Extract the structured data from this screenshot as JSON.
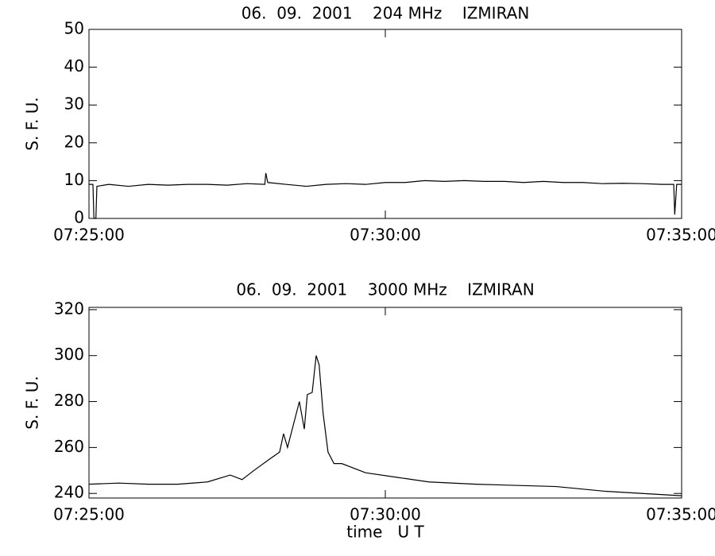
{
  "chart_data": [
    {
      "type": "line",
      "title": "06.  09.  2001    204 MHz    IZMIRAN",
      "y_label": "S. F. U.",
      "xlim": [
        "07:25:00",
        "07:35:00"
      ],
      "xticks": [
        "07:25:00",
        "07:30:00",
        "07:35:00"
      ],
      "ylim": [
        0,
        50
      ],
      "yticks": [
        0,
        10,
        20,
        30,
        40,
        50
      ],
      "series": [
        {
          "color": "#000000",
          "x": [
            "07:25:00",
            "07:25:04",
            "07:25:05",
            "07:25:07",
            "07:25:08",
            "07:25:20",
            "07:25:40",
            "07:26:00",
            "07:26:20",
            "07:26:40",
            "07:27:00",
            "07:27:20",
            "07:27:40",
            "07:27:58",
            "07:27:59",
            "07:28:01",
            "07:28:20",
            "07:28:40",
            "07:29:00",
            "07:29:20",
            "07:29:40",
            "07:30:00",
            "07:30:20",
            "07:30:40",
            "07:31:00",
            "07:31:20",
            "07:31:40",
            "07:32:00",
            "07:32:20",
            "07:32:40",
            "07:33:00",
            "07:33:20",
            "07:33:40",
            "07:34:00",
            "07:34:20",
            "07:34:40",
            "07:34:52",
            "07:34:53",
            "07:34:55",
            "07:35:00"
          ],
          "values": [
            9,
            9,
            0,
            0,
            8.5,
            9,
            8.5,
            9,
            8.8,
            9,
            9,
            8.8,
            9.2,
            9,
            12,
            9.5,
            9,
            8.5,
            9,
            9.2,
            9,
            9.5,
            9.5,
            10,
            9.8,
            10,
            9.8,
            9.8,
            9.5,
            9.8,
            9.5,
            9.5,
            9.2,
            9.3,
            9.2,
            9,
            9,
            1,
            9,
            9
          ]
        }
      ]
    },
    {
      "type": "line",
      "title": "06.  09.  2001    3000 MHz    IZMIRAN",
      "y_label": "S. F. U.",
      "x_label": "time   U T",
      "xlim": [
        "07:25:00",
        "07:35:00"
      ],
      "xticks": [
        "07:25:00",
        "07:30:00",
        "07:35:00"
      ],
      "ylim": [
        238,
        321
      ],
      "yticks": [
        240,
        260,
        280,
        300,
        320
      ],
      "series": [
        {
          "color": "#000000",
          "x": [
            "07:25:00",
            "07:25:30",
            "07:26:00",
            "07:26:30",
            "07:27:00",
            "07:27:23",
            "07:27:35",
            "07:27:47",
            "07:28:03",
            "07:28:13",
            "07:28:17",
            "07:28:21",
            "07:28:27",
            "07:28:33",
            "07:28:38",
            "07:28:41",
            "07:28:46",
            "07:28:50",
            "07:28:53",
            "07:28:57",
            "07:29:02",
            "07:29:08",
            "07:29:16",
            "07:29:40",
            "07:30:12",
            "07:30:44",
            "07:31:32",
            "07:32:53",
            "07:33:41",
            "07:34:20",
            "07:35:00"
          ],
          "values": [
            244,
            244.5,
            244,
            244,
            245,
            248,
            246,
            250,
            255,
            258,
            266,
            260,
            270,
            280,
            268,
            283,
            284,
            300,
            296,
            275,
            258,
            253,
            253,
            249,
            247,
            245,
            244,
            243,
            241,
            240,
            239
          ]
        }
      ]
    }
  ]
}
